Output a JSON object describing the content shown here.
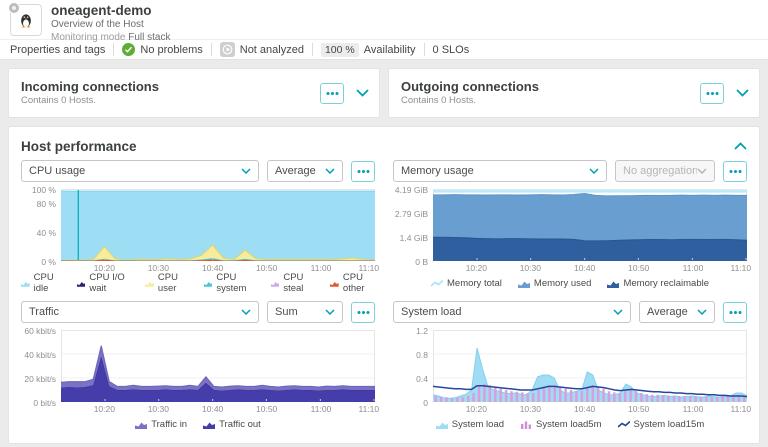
{
  "header": {
    "title": "oneagent-demo",
    "subtitle": "Overview of the Host",
    "monitoring_mode_label": "Monitoring mode",
    "monitoring_mode_value": "Full stack"
  },
  "statusbar": {
    "properties_label": "Properties and tags",
    "no_problems_label": "No problems",
    "not_analyzed_label": "Not analyzed",
    "availability_value": "100 %",
    "availability_label": "Availability",
    "slos_label": "0 SLOs"
  },
  "connections": {
    "incoming": {
      "title": "Incoming connections",
      "subtitle": "Contains 0 Hosts."
    },
    "outgoing": {
      "title": "Outgoing connections",
      "subtitle": "Contains 0 Hosts."
    }
  },
  "host_performance": {
    "title": "Host performance",
    "panels": [
      {
        "metric": "CPU usage",
        "aggregation": "Average",
        "aggregation_disabled": false
      },
      {
        "metric": "Memory usage",
        "aggregation": "No aggregation",
        "aggregation_disabled": true
      },
      {
        "metric": "Traffic",
        "aggregation": "Sum",
        "aggregation_disabled": false
      },
      {
        "metric": "System load",
        "aggregation": "Average",
        "aggregation_disabled": false
      }
    ]
  },
  "colors": {
    "accent_teal": "#00a1b2",
    "problem_green": "#5ead35",
    "not_analyzed_gray": "#cfcfcf"
  },
  "chart_data": [
    {
      "id": "cpu-usage",
      "type": "area",
      "title": "CPU usage",
      "aggregation": "Average",
      "unit": "%",
      "ylim": [
        0,
        100
      ],
      "y_ticks": [
        {
          "value": 100,
          "label": "100 %"
        },
        {
          "value": 80,
          "label": "80 %"
        },
        {
          "value": 40,
          "label": "40 %"
        },
        {
          "value": 0,
          "label": "0 %"
        }
      ],
      "x_ticks": [
        {
          "f": 0.138,
          "label": "10:20"
        },
        {
          "f": 0.31,
          "label": "10:30"
        },
        {
          "f": 0.483,
          "label": "10:40"
        },
        {
          "f": 0.655,
          "label": "10:50"
        },
        {
          "f": 0.828,
          "label": "11:00"
        },
        {
          "f": 1.0,
          "label": "11:10"
        }
      ],
      "cursor_x": 0.055,
      "series": [
        {
          "name": "CPU idle",
          "render": "area",
          "color": "#9edef4",
          "stroke": "#7fd0ec",
          "values": [
            97,
            97,
            97,
            97,
            97,
            97,
            97,
            97,
            97,
            97,
            97,
            97,
            97,
            97,
            97,
            97,
            97,
            97,
            97,
            97,
            97,
            97,
            97,
            97,
            97,
            97,
            97,
            97,
            97,
            97
          ]
        },
        {
          "name": "CPU I/O wait",
          "render": "area",
          "color": "#2b2171",
          "values": [
            0,
            0,
            0,
            0,
            0,
            0,
            0,
            0,
            0,
            0,
            0,
            0,
            0,
            0,
            0,
            0,
            0,
            0,
            0,
            0,
            0,
            0,
            0,
            0,
            0,
            0,
            0,
            0,
            0,
            0
          ]
        },
        {
          "name": "CPU user",
          "render": "area",
          "color": "#f6ec9c",
          "stroke": "#e3d469",
          "values": [
            1,
            1,
            1,
            2,
            20,
            3,
            1,
            2,
            2,
            2,
            3,
            2,
            3,
            8,
            22,
            4,
            2,
            15,
            3,
            2,
            2,
            2,
            2,
            2,
            2,
            2,
            3,
            4,
            2,
            1
          ]
        },
        {
          "name": "CPU system",
          "render": "area",
          "color": "#49c8d4",
          "values": [
            1,
            1,
            1,
            1,
            3,
            1,
            1,
            1,
            1,
            1,
            1,
            1,
            1,
            2,
            4,
            1,
            1,
            3,
            1,
            1,
            1,
            1,
            1,
            1,
            1,
            1,
            1,
            1,
            1,
            1
          ]
        },
        {
          "name": "CPU steal",
          "render": "area",
          "color": "#c9aee5",
          "values": [
            0,
            0,
            0,
            0,
            0,
            0,
            0,
            0,
            0,
            0,
            0,
            0,
            0,
            0,
            0,
            0,
            0,
            0,
            0,
            0,
            0,
            0,
            0,
            0,
            0,
            0,
            0,
            0,
            0,
            0
          ]
        },
        {
          "name": "CPU other",
          "render": "area",
          "color": "#e0592c",
          "values": [
            0.5,
            0.5,
            0.5,
            0.5,
            2,
            0.5,
            0.5,
            0.5,
            0.5,
            0.5,
            0.5,
            0.5,
            0.5,
            1,
            2,
            0.5,
            0.5,
            1.5,
            0.5,
            0.5,
            0.5,
            0.5,
            0.5,
            0.5,
            0.5,
            0.5,
            0.5,
            0.5,
            0.5,
            0.5
          ]
        }
      ],
      "legend": [
        {
          "label": "CPU idle",
          "icon": "area",
          "color": "#9edef4"
        },
        {
          "label": "CPU I/O wait",
          "icon": "area",
          "color": "#2b2171"
        },
        {
          "label": "CPU user",
          "icon": "area",
          "color": "#f6ec9c"
        },
        {
          "label": "CPU system",
          "icon": "area",
          "color": "#49c8d4"
        },
        {
          "label": "CPU steal",
          "icon": "area",
          "color": "#c9aee5"
        },
        {
          "label": "CPU other",
          "icon": "area",
          "color": "#e0592c"
        }
      ]
    },
    {
      "id": "memory-usage",
      "type": "area",
      "title": "Memory usage",
      "aggregation": "No aggregation",
      "unit": "GiB",
      "ylim": [
        0,
        4.19
      ],
      "y_ticks": [
        {
          "value": 4.19,
          "label": "4.19 GiB"
        },
        {
          "value": 2.79,
          "label": "2.79 GiB"
        },
        {
          "value": 1.4,
          "label": "1.4 GiB"
        },
        {
          "value": 0,
          "label": "0 B"
        }
      ],
      "x_ticks": [
        {
          "f": 0.138,
          "label": "10:20"
        },
        {
          "f": 0.31,
          "label": "10:30"
        },
        {
          "f": 0.483,
          "label": "10:40"
        },
        {
          "f": 0.655,
          "label": "10:50"
        },
        {
          "f": 0.828,
          "label": "11:00"
        },
        {
          "f": 1.0,
          "label": "11:10"
        }
      ],
      "series": [
        {
          "name": "Memory used",
          "render": "area",
          "color": "#699fd0",
          "stroke": "#5c93c9",
          "values": [
            3.85,
            3.85,
            3.86,
            3.85,
            3.85,
            3.84,
            3.85,
            3.85,
            3.84,
            3.85,
            3.86,
            3.85,
            3.84,
            3.87,
            3.93,
            3.82,
            3.79,
            3.8,
            3.8,
            3.81,
            3.82,
            3.81,
            3.82,
            3.83,
            3.82,
            3.83,
            3.82,
            3.83,
            3.82,
            3.82
          ]
        },
        {
          "name": "Memory reclaimable",
          "render": "area",
          "color": "#2f5f9e",
          "stroke": "#2a5691",
          "values": [
            1.38,
            1.38,
            1.37,
            1.35,
            1.32,
            1.3,
            1.29,
            1.3,
            1.3,
            1.29,
            1.28,
            1.28,
            1.28,
            1.26,
            1.18,
            1.17,
            1.18,
            1.2,
            1.22,
            1.24,
            1.25,
            1.25,
            1.24,
            1.25,
            1.26,
            1.25,
            1.25,
            1.26,
            1.24,
            1.21
          ]
        },
        {
          "name": "Memory total",
          "render": "line",
          "color": "#b9eaf8",
          "width": 2.5,
          "values": [
            4.05,
            4.05,
            4.05,
            4.05,
            4.05,
            4.05,
            4.05,
            4.05,
            4.05,
            4.05,
            4.05,
            4.05,
            4.05,
            4.05,
            4.05,
            4.05,
            4.05,
            4.05,
            4.05,
            4.05,
            4.05,
            4.05,
            4.05,
            4.05,
            4.05,
            4.05,
            4.05,
            4.05,
            4.05,
            4.05
          ]
        }
      ],
      "legend": [
        {
          "label": "Memory total",
          "icon": "line",
          "color": "#a5e4f5"
        },
        {
          "label": "Memory used",
          "icon": "area",
          "color": "#699fd0"
        },
        {
          "label": "Memory reclaimable",
          "icon": "area",
          "color": "#2f5f9e"
        }
      ]
    },
    {
      "id": "traffic",
      "type": "area",
      "title": "Traffic",
      "aggregation": "Sum",
      "unit": "kbit/s",
      "ylim": [
        0,
        60
      ],
      "y_ticks": [
        {
          "value": 60,
          "label": "60 kbit/s"
        },
        {
          "value": 40,
          "label": "40 kbit/s"
        },
        {
          "value": 20,
          "label": "20 kbit/s"
        },
        {
          "value": 0,
          "label": "0 bit/s"
        }
      ],
      "x_ticks": [
        {
          "f": 0.138,
          "label": "10:20"
        },
        {
          "f": 0.31,
          "label": "10:30"
        },
        {
          "f": 0.483,
          "label": "10:40"
        },
        {
          "f": 0.655,
          "label": "10:50"
        },
        {
          "f": 0.828,
          "label": "11:00"
        },
        {
          "f": 1.0,
          "label": "11:10"
        }
      ],
      "series": [
        {
          "name": "Traffic out",
          "render": "area",
          "stacked": true,
          "color": "#453daa",
          "stroke": "#3c3496",
          "values": [
            12,
            12.5,
            12,
            12.5,
            14,
            38,
            13,
            10,
            10,
            10.5,
            10,
            10,
            10,
            10.5,
            10,
            10,
            10.5,
            10,
            16,
            10,
            9.5,
            10,
            10.5,
            10,
            10,
            10.5,
            10,
            9.5,
            10,
            10.5,
            10,
            10,
            9.5,
            10,
            10,
            10.5,
            10,
            10,
            10,
            10
          ]
        },
        {
          "name": "Traffic in",
          "render": "area",
          "stacked": true,
          "color": "#7a72c5",
          "stroke": "#6c64ba",
          "values": [
            4.5,
            4.5,
            5,
            4.5,
            5,
            9,
            4,
            3,
            3,
            3.5,
            3,
            3,
            3.2,
            3,
            3,
            3,
            3.5,
            3,
            5,
            3,
            3,
            3.2,
            3,
            3,
            3,
            3.5,
            3,
            3,
            3.2,
            3,
            3,
            3,
            3,
            3.2,
            3,
            3,
            3,
            3,
            3,
            3
          ]
        }
      ],
      "legend": [
        {
          "label": "Traffic in",
          "icon": "area",
          "color": "#7a72c5"
        },
        {
          "label": "Traffic out",
          "icon": "area",
          "color": "#453daa"
        }
      ]
    },
    {
      "id": "system-load",
      "type": "area",
      "title": "System load",
      "aggregation": "Average",
      "unit": "",
      "ylim": [
        0,
        1.2
      ],
      "y_ticks": [
        {
          "value": 1.2,
          "label": "1.2"
        },
        {
          "value": 0.8,
          "label": "0.8"
        },
        {
          "value": 0.4,
          "label": "0.4"
        },
        {
          "value": 0,
          "label": "0"
        }
      ],
      "x_ticks": [
        {
          "f": 0.138,
          "label": "10:20"
        },
        {
          "f": 0.31,
          "label": "10:30"
        },
        {
          "f": 0.483,
          "label": "10:40"
        },
        {
          "f": 0.655,
          "label": "10:50"
        },
        {
          "f": 0.828,
          "label": "11:00"
        },
        {
          "f": 1.0,
          "label": "11:10"
        }
      ],
      "series": [
        {
          "name": "System load",
          "render": "area",
          "color": "#a0ddf5",
          "stroke": "#85cfef",
          "values": [
            0.12,
            0.1,
            0.07,
            0.06,
            0.07,
            0.1,
            0.13,
            0.2,
            0.9,
            0.55,
            0.25,
            0.2,
            0.18,
            0.15,
            0.14,
            0.15,
            0.13,
            0.12,
            0.2,
            0.42,
            0.45,
            0.45,
            0.4,
            0.2,
            0.15,
            0.15,
            0.18,
            0.2,
            0.5,
            0.45,
            0.2,
            0.15,
            0.12,
            0.12,
            0.15,
            0.3,
            0.25,
            0.15,
            0.12,
            0.1,
            0.09,
            0.1,
            0.11,
            0.09,
            0.1,
            0.08,
            0.09,
            0.1,
            0.09,
            0.08,
            0.1,
            0.09,
            0.08,
            0.09,
            0.1,
            0.15,
            0.15,
            0.1
          ]
        },
        {
          "name": "System load5m",
          "render": "bars",
          "color": "#d89fdf",
          "values": [
            0.1,
            0.09,
            0.08,
            0.07,
            0.07,
            0.08,
            0.1,
            0.15,
            0.28,
            0.3,
            0.28,
            0.25,
            0.22,
            0.2,
            0.18,
            0.17,
            0.16,
            0.15,
            0.15,
            0.2,
            0.25,
            0.28,
            0.28,
            0.25,
            0.22,
            0.2,
            0.18,
            0.18,
            0.25,
            0.28,
            0.26,
            0.22,
            0.18,
            0.16,
            0.15,
            0.18,
            0.2,
            0.18,
            0.15,
            0.13,
            0.12,
            0.12,
            0.11,
            0.11,
            0.1,
            0.1,
            0.1,
            0.1,
            0.09,
            0.09,
            0.09,
            0.08,
            0.09,
            0.1,
            0.1,
            0.1,
            0.09,
            0.08
          ]
        },
        {
          "name": "System load15m",
          "render": "line",
          "color": "#24489a",
          "width": 1.5,
          "values": [
            0.26,
            0.25,
            0.24,
            0.23,
            0.22,
            0.22,
            0.21,
            0.21,
            0.27,
            0.27,
            0.26,
            0.25,
            0.24,
            0.23,
            0.22,
            0.21,
            0.2,
            0.2,
            0.2,
            0.22,
            0.24,
            0.26,
            0.26,
            0.25,
            0.24,
            0.23,
            0.22,
            0.22,
            0.24,
            0.26,
            0.25,
            0.24,
            0.22,
            0.2,
            0.19,
            0.2,
            0.21,
            0.2,
            0.19,
            0.18,
            0.17,
            0.17,
            0.16,
            0.16,
            0.15,
            0.15,
            0.14,
            0.14,
            0.13,
            0.13,
            0.12,
            0.12,
            0.11,
            0.11,
            0.1,
            0.1,
            0.1,
            0.09
          ]
        }
      ],
      "legend": [
        {
          "label": "System load",
          "icon": "area",
          "color": "#a0ddf5"
        },
        {
          "label": "System load5m",
          "icon": "bars",
          "color": "#cf8ed8"
        },
        {
          "label": "System load15m",
          "icon": "line",
          "color": "#24489a"
        }
      ]
    }
  ]
}
